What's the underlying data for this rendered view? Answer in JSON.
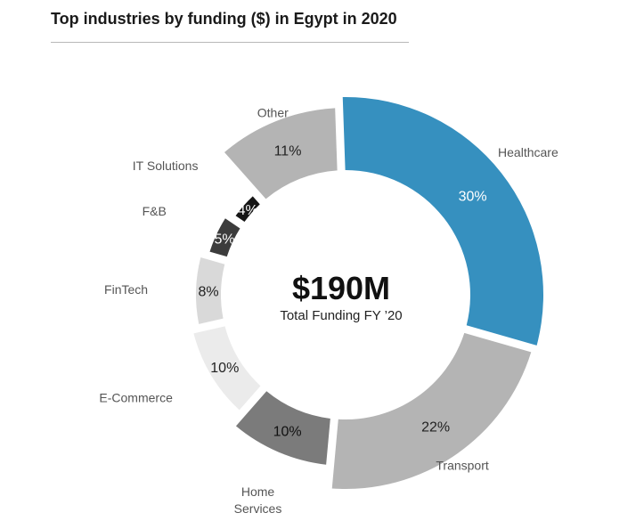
{
  "chart_title": "Top industries by funding ($) in Egypt in 2020",
  "center": {
    "value": "$190M",
    "label": "Total Funding FY ’20"
  },
  "chart_data": {
    "type": "pie",
    "title": "Top industries by funding ($) in Egypt in 2020",
    "total": "$190M",
    "slices": [
      {
        "label": "Healthcare",
        "value": 30,
        "display": "30%",
        "color": "#3690bf",
        "text_color": "#ffffff"
      },
      {
        "label": "Transport",
        "value": 22,
        "display": "22%",
        "color": "#b4b4b4",
        "text_color": "#222222"
      },
      {
        "label": "Home Services",
        "value": 10,
        "display": "10%",
        "color": "#7b7b7b",
        "text_color": "#111111"
      },
      {
        "label": "E-Commerce",
        "value": 10,
        "display": "10%",
        "color": "#ebebeb",
        "text_color": "#222222"
      },
      {
        "label": "FinTech",
        "value": 8,
        "display": "8%",
        "color": "#d9d9d9",
        "text_color": "#222222"
      },
      {
        "label": "F&B",
        "value": 5,
        "display": "5%",
        "color": "#3c3c3c",
        "text_color": "#ffffff"
      },
      {
        "label": "IT Solutions",
        "value": 4,
        "display": "4%",
        "color": "#161616",
        "text_color": "#ffffff"
      },
      {
        "label": "Other",
        "value": 11,
        "display": "11%",
        "color": "#b4b4b4",
        "text_color": "#222222"
      }
    ]
  }
}
